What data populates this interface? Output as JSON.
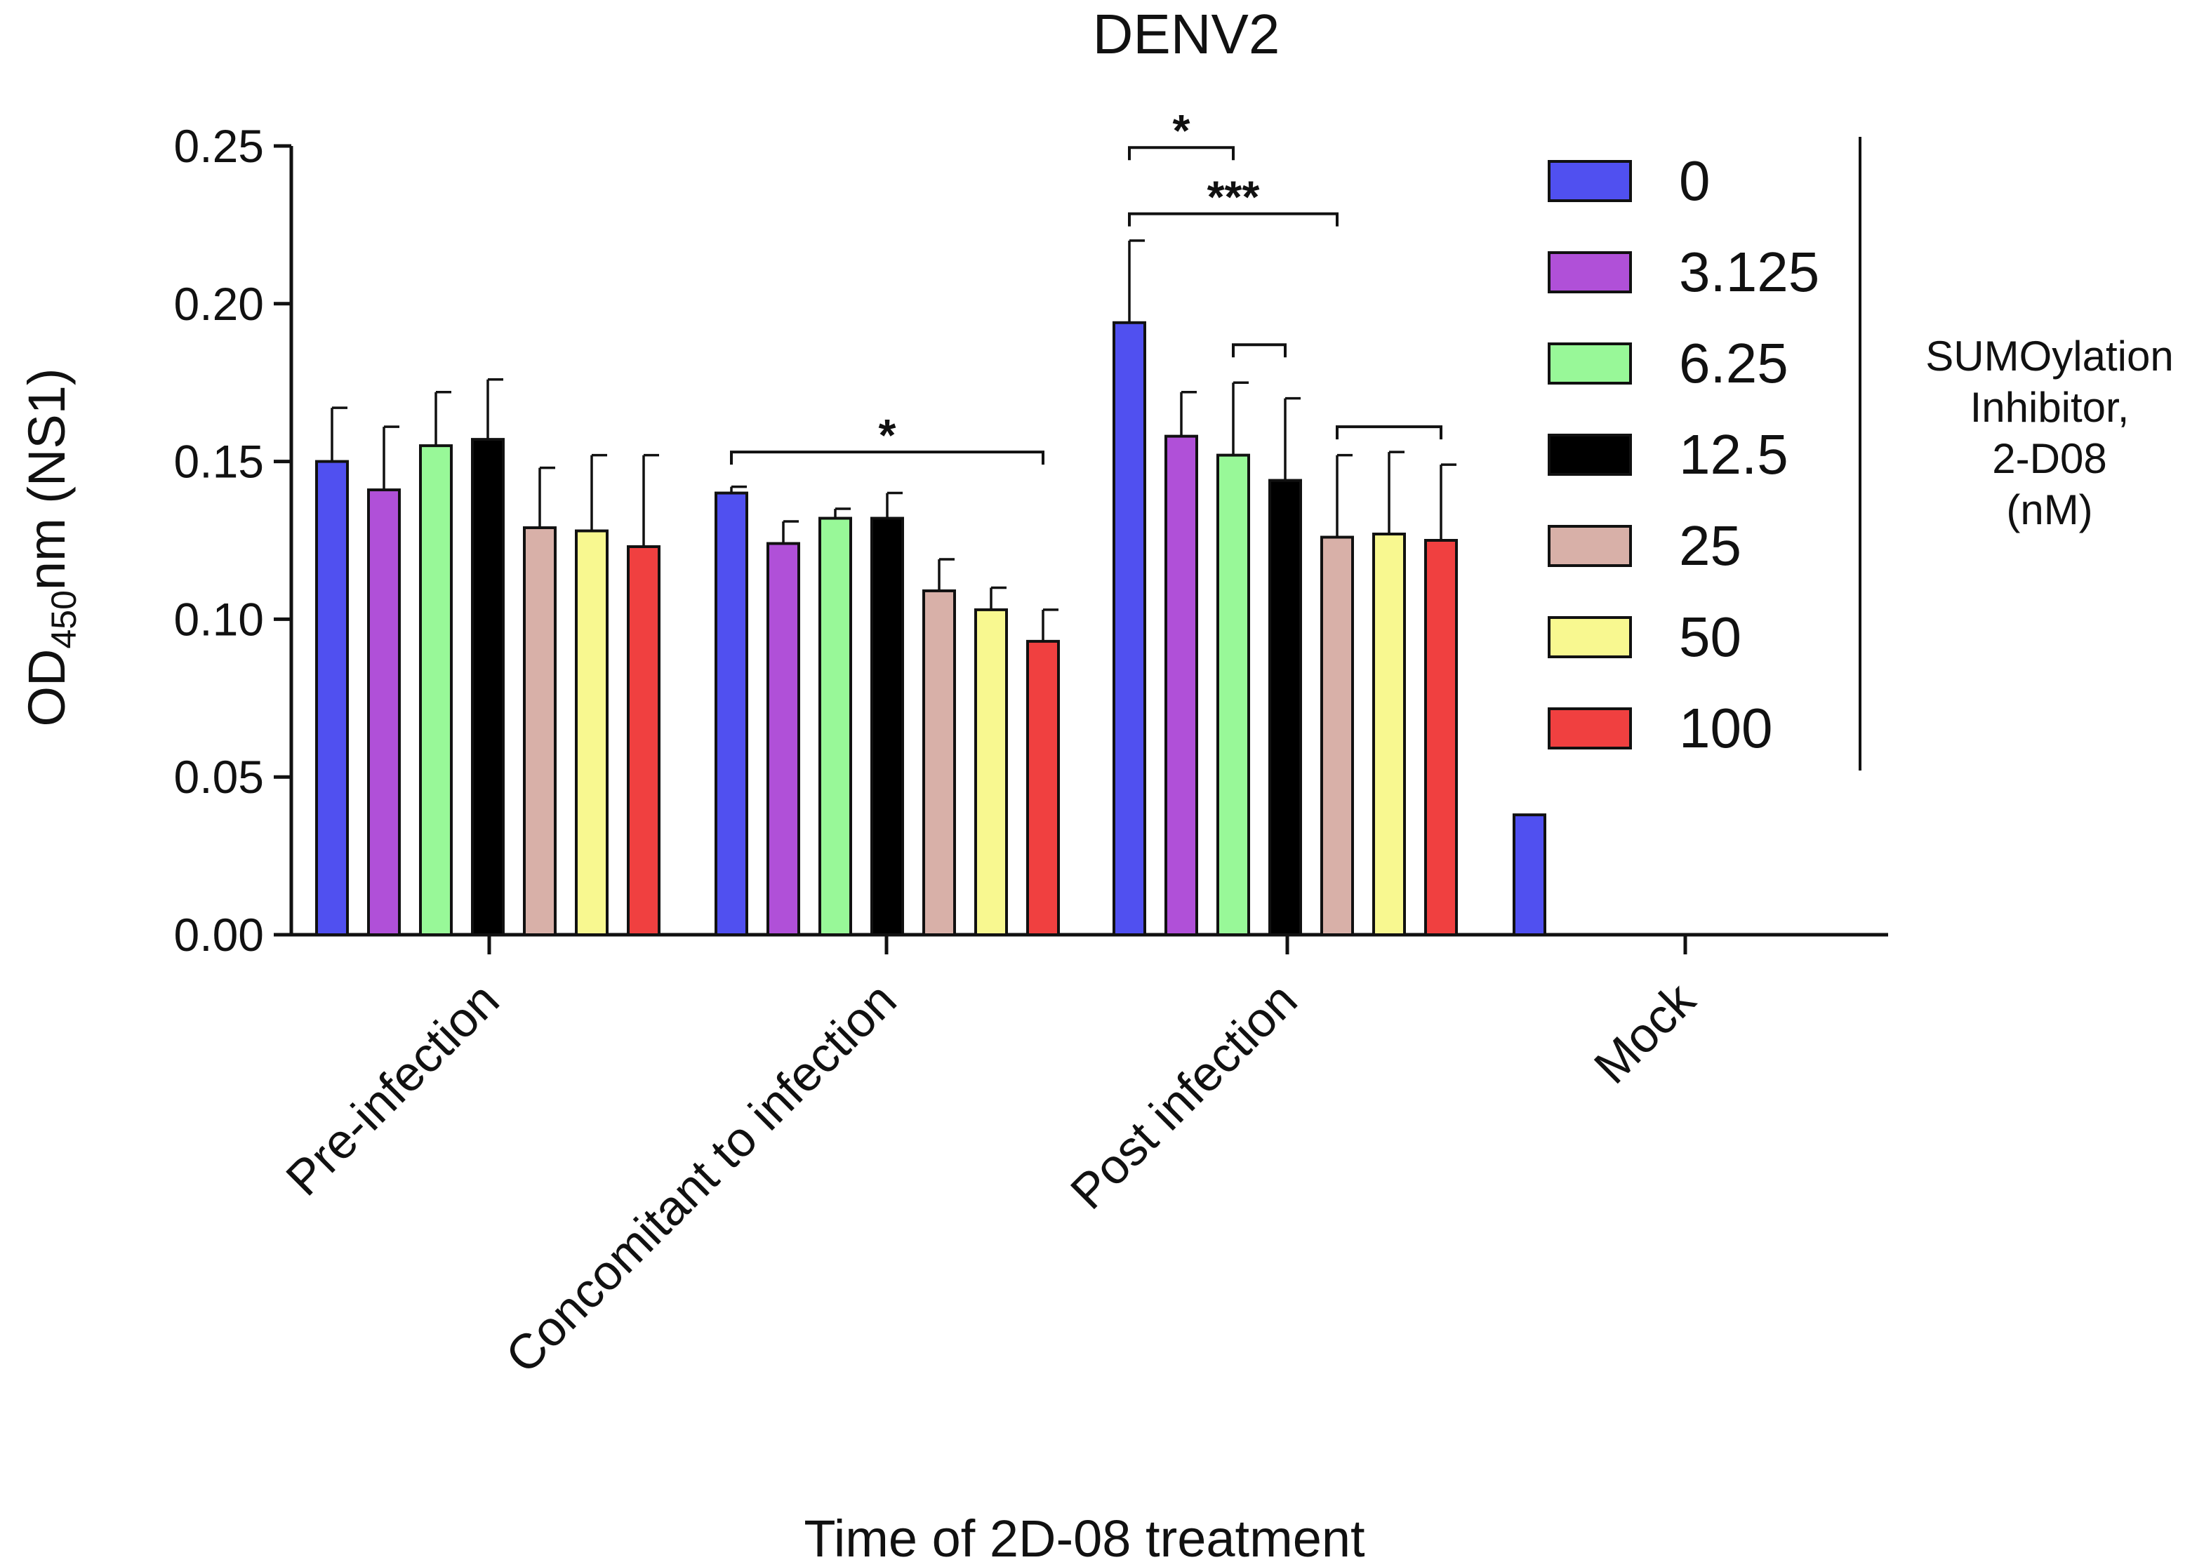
{
  "chart_data": {
    "type": "bar",
    "title": "DENV2",
    "xlabel": "Time of 2D-08 treatment",
    "ylabel": {
      "main": "OD",
      "sub": "450",
      "rest": "nm (NS1)"
    },
    "ylim": [
      0,
      0.25
    ],
    "yticks": [
      "0.00",
      "0.05",
      "0.10",
      "0.15",
      "0.20",
      "0.25"
    ],
    "categories": [
      "Pre-infection",
      "Concomitant to infection",
      "Post infection",
      "Mock"
    ],
    "legend_title": [
      "SUMOylation",
      "Inhibitor,",
      "2-D08",
      "(nM)"
    ],
    "legend_position": "top-right",
    "series": [
      {
        "name": "0",
        "color": "#5050f0",
        "values": [
          0.15,
          0.14,
          0.194,
          0.038
        ],
        "errors": [
          0.017,
          0.002,
          0.026,
          0
        ]
      },
      {
        "name": "3.125",
        "color": "#b050d8",
        "values": [
          0.141,
          0.124,
          0.158,
          null
        ],
        "errors": [
          0.02,
          0.007,
          0.014,
          null
        ]
      },
      {
        "name": "6.25",
        "color": "#98f898",
        "values": [
          0.155,
          0.132,
          0.152,
          null
        ],
        "errors": [
          0.017,
          0.003,
          0.023,
          null
        ]
      },
      {
        "name": "12.5",
        "color": "#000000",
        "values": [
          0.157,
          0.132,
          0.144,
          null
        ],
        "errors": [
          0.019,
          0.008,
          0.026,
          null
        ]
      },
      {
        "name": "25",
        "color": "#d8b0a8",
        "values": [
          0.129,
          0.109,
          0.126,
          null
        ],
        "errors": [
          0.019,
          0.01,
          0.026,
          null
        ]
      },
      {
        "name": "50",
        "color": "#f8f890",
        "values": [
          0.128,
          0.103,
          0.127,
          null
        ],
        "errors": [
          0.024,
          0.007,
          0.026,
          null
        ]
      },
      {
        "name": "100",
        "color": "#f04040",
        "values": [
          0.123,
          0.093,
          0.125,
          null
        ],
        "errors": [
          0.029,
          0.01,
          0.024,
          null
        ]
      }
    ],
    "annotations": [
      {
        "category": 1,
        "from_series": 0,
        "to_series": 6,
        "level": 0.153,
        "label": "*"
      },
      {
        "category": 2,
        "from_series": 0,
        "to_series": 2,
        "level": 0.2495,
        "label": "*"
      },
      {
        "category": 2,
        "from_series": 0,
        "to_series": 4,
        "level": 0.2285,
        "label": "***"
      },
      {
        "category": 2,
        "from_series": 2,
        "to_series": 3,
        "level": 0.187,
        "label": ""
      },
      {
        "category": 2,
        "from_series": 4,
        "to_series": 6,
        "level": 0.161,
        "label": ""
      }
    ]
  }
}
